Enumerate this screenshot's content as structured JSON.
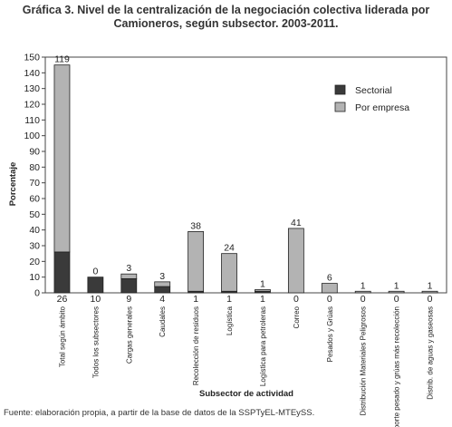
{
  "title_lines": [
    "Gráfica 3. Nivel de la centralización de la negociación colectiva liderada por",
    "Camioneros, según subsector. 2003-2011."
  ],
  "source": "Fuente: elaboración propia, a partir de la base de datos de la SSPTyEL-MTEySS.",
  "chart_data": {
    "type": "bar",
    "stacked": true,
    "title": "Gráfica 3. Nivel de la centralización de la negociación colectiva liderada por Camioneros, según subsector. 2003-2011.",
    "xlabel": "Subsector de actividad",
    "ylabel": "Porcentaje",
    "ylim": [
      0,
      150
    ],
    "yticks": [
      0,
      10,
      20,
      30,
      40,
      50,
      60,
      70,
      80,
      90,
      100,
      110,
      120,
      130,
      140,
      150
    ],
    "grid": false,
    "legend_position": "top-right",
    "categories": [
      "Total según ámbito",
      "Todos los subsectores",
      "Cargas generales",
      "Caudales",
      "Recolección de residuos",
      "Logística",
      "Logística para petroleras",
      "Correo",
      "Pesados y Grúas",
      "Distribución Materiales Peligrosos",
      "Transporte pesado y grúas más recolección",
      "Distrib. de aguas y gaseosas"
    ],
    "series": [
      {
        "name": "Sectorial",
        "color": "#3a3a3a",
        "values": [
          26,
          10,
          9,
          4,
          1,
          1,
          1,
          0,
          0,
          0,
          0,
          0
        ],
        "labels": [
          "26",
          "10",
          "9",
          "4",
          "1",
          "1",
          "1",
          "0",
          "0",
          "0",
          "0",
          "0"
        ]
      },
      {
        "name": "Por empresa",
        "color": "#b3b3b3",
        "values": [
          119,
          0,
          3,
          3,
          38,
          24,
          1,
          41,
          6,
          1,
          1,
          1
        ],
        "labels": [
          "119",
          "0",
          "3",
          "3",
          "38",
          "24",
          "1",
          "41",
          "6",
          "1",
          "1",
          "1"
        ]
      }
    ]
  }
}
